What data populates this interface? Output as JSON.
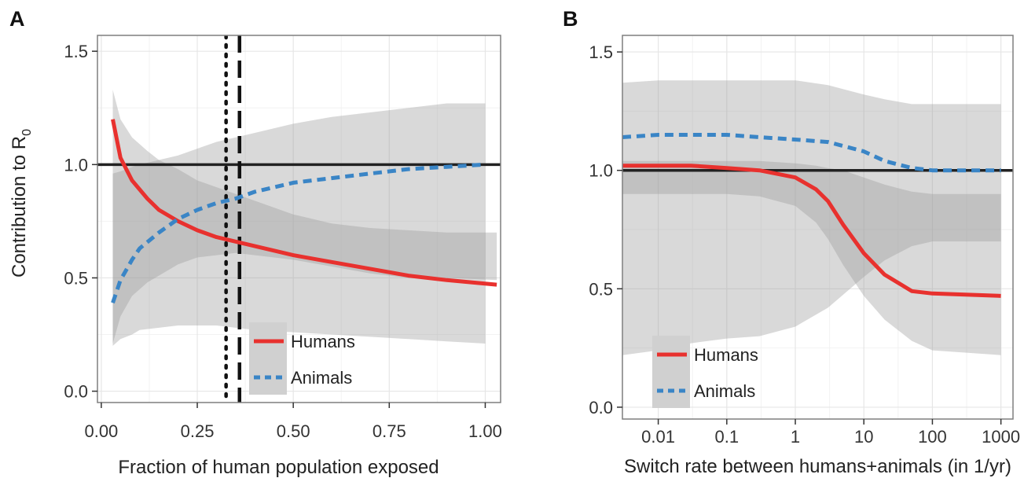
{
  "chart_data": [
    {
      "panel_label": "A",
      "type": "line",
      "xlabel": "Fraction of human population exposed",
      "ylabel": "Contribution to R",
      "ylabel_subscript": "0",
      "xlim": [
        -0.01,
        1.04
      ],
      "ylim": [
        -0.05,
        1.57
      ],
      "x_scale": "linear",
      "x_ticks": [
        0.0,
        0.25,
        0.5,
        0.75,
        1.0
      ],
      "x_tick_labels": [
        "0.00",
        "0.25",
        "0.50",
        "0.75",
        "1.00"
      ],
      "y_ticks": [
        0.0,
        0.5,
        1.0,
        1.5
      ],
      "y_tick_labels": [
        "0.0",
        "0.5",
        "1.0",
        "1.5"
      ],
      "grid": true,
      "reference_line": 1.0,
      "vlines": [
        {
          "x": 0.325,
          "style": "dotted"
        },
        {
          "x": 0.36,
          "style": "dashed"
        }
      ],
      "legend": {
        "placement": "bottom-center",
        "entries": [
          "Humans",
          "Animals"
        ]
      },
      "series": [
        {
          "name": "Humans",
          "color": "#e8312e",
          "style": "solid",
          "x": [
            0.03,
            0.05,
            0.08,
            0.12,
            0.15,
            0.2,
            0.25,
            0.3,
            0.35,
            0.4,
            0.5,
            0.6,
            0.7,
            0.8,
            0.9,
            1.03
          ],
          "values": [
            1.2,
            1.03,
            0.93,
            0.85,
            0.8,
            0.75,
            0.71,
            0.68,
            0.66,
            0.64,
            0.6,
            0.57,
            0.54,
            0.51,
            0.49,
            0.47
          ],
          "lower": [
            0.21,
            0.33,
            0.42,
            0.48,
            0.51,
            0.56,
            0.59,
            0.6,
            0.61,
            0.6,
            0.58,
            0.55,
            0.52,
            0.5,
            0.5,
            0.49
          ],
          "upper": [
            1.33,
            1.2,
            1.12,
            1.06,
            1.02,
            0.98,
            0.93,
            0.9,
            0.87,
            0.84,
            0.78,
            0.74,
            0.72,
            0.71,
            0.7,
            0.7
          ]
        },
        {
          "name": "Animals",
          "color": "#3a85c6",
          "style": "dashed",
          "x": [
            0.03,
            0.05,
            0.08,
            0.1,
            0.15,
            0.2,
            0.25,
            0.3,
            0.35,
            0.4,
            0.5,
            0.6,
            0.7,
            0.8,
            0.9,
            1.0
          ],
          "values": [
            0.39,
            0.49,
            0.58,
            0.63,
            0.7,
            0.76,
            0.8,
            0.83,
            0.85,
            0.88,
            0.92,
            0.94,
            0.96,
            0.98,
            0.99,
            1.0
          ],
          "lower": [
            0.2,
            0.23,
            0.25,
            0.27,
            0.28,
            0.29,
            0.29,
            0.29,
            0.28,
            0.27,
            0.26,
            0.25,
            0.24,
            0.23,
            0.22,
            0.21
          ],
          "upper": [
            0.96,
            0.97,
            0.99,
            1.0,
            1.02,
            1.04,
            1.07,
            1.1,
            1.12,
            1.14,
            1.18,
            1.21,
            1.23,
            1.25,
            1.27,
            1.27
          ]
        }
      ]
    },
    {
      "panel_label": "B",
      "type": "line",
      "xlabel": "Switch rate between humans+animals (in 1/yr)",
      "ylabel": "",
      "x_scale": "log",
      "xlim": [
        0.003,
        1500
      ],
      "ylim": [
        -0.05,
        1.57
      ],
      "x_ticks": [
        0.01,
        0.1,
        1,
        10,
        100,
        1000
      ],
      "x_tick_labels": [
        "0.01",
        "0.1",
        "1",
        "10",
        "100",
        "1000"
      ],
      "y_ticks": [
        0.0,
        0.5,
        1.0,
        1.5
      ],
      "y_tick_labels": [
        "0.0",
        "0.5",
        "1.0",
        "1.5"
      ],
      "grid": true,
      "reference_line": 1.0,
      "legend": {
        "placement": "bottom-left",
        "entries": [
          "Humans",
          "Animals"
        ]
      },
      "series": [
        {
          "name": "Humans",
          "color": "#e8312e",
          "style": "solid",
          "x": [
            0.003,
            0.01,
            0.03,
            0.1,
            0.3,
            1,
            2,
            3,
            5,
            10,
            20,
            50,
            100,
            1000
          ],
          "values": [
            1.02,
            1.02,
            1.02,
            1.01,
            1.0,
            0.97,
            0.92,
            0.87,
            0.77,
            0.65,
            0.56,
            0.49,
            0.48,
            0.47
          ],
          "lower": [
            0.9,
            0.9,
            0.9,
            0.9,
            0.89,
            0.85,
            0.78,
            0.71,
            0.6,
            0.47,
            0.37,
            0.28,
            0.24,
            0.22
          ],
          "upper": [
            1.04,
            1.04,
            1.04,
            1.04,
            1.04,
            1.03,
            1.02,
            1.01,
            1.0,
            0.97,
            0.94,
            0.91,
            0.9,
            0.9
          ]
        },
        {
          "name": "Animals",
          "color": "#3a85c6",
          "style": "dashed",
          "x": [
            0.003,
            0.01,
            0.03,
            0.1,
            0.3,
            1,
            3,
            10,
            20,
            50,
            100,
            1000
          ],
          "values": [
            1.14,
            1.15,
            1.15,
            1.15,
            1.14,
            1.13,
            1.12,
            1.08,
            1.04,
            1.01,
            1.0,
            1.0
          ],
          "lower": [
            0.22,
            0.24,
            0.27,
            0.29,
            0.3,
            0.34,
            0.42,
            0.55,
            0.62,
            0.68,
            0.7,
            0.7
          ],
          "upper": [
            1.37,
            1.38,
            1.38,
            1.38,
            1.38,
            1.38,
            1.36,
            1.32,
            1.3,
            1.28,
            1.28,
            1.28
          ]
        }
      ]
    }
  ]
}
